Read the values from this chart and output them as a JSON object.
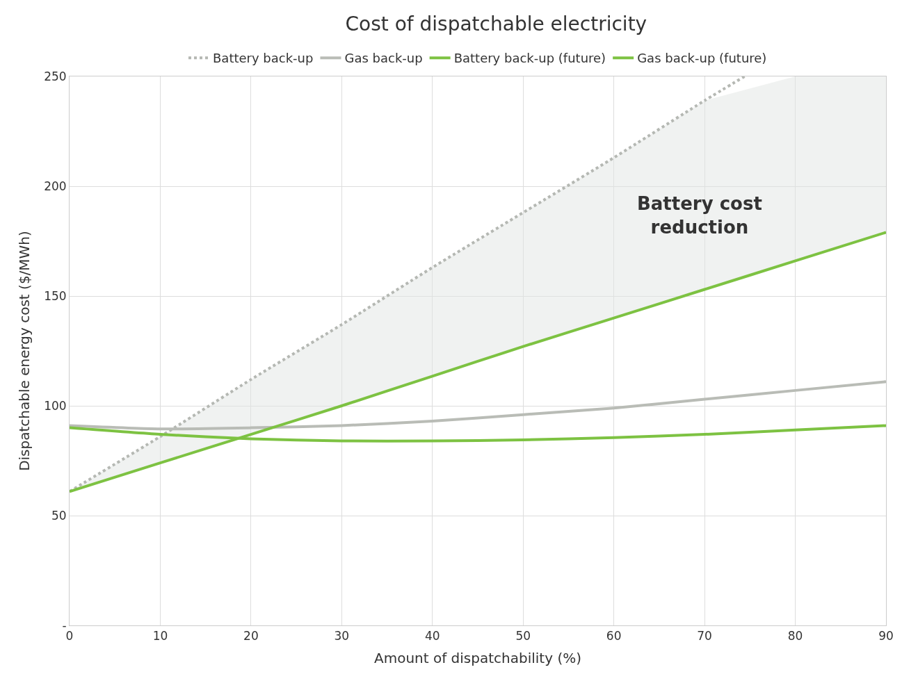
{
  "chart_data": {
    "type": "line",
    "title": "Cost of dispatchable electricity",
    "xlabel": "Amount of dispatchability (%)",
    "ylabel": "Dispatchable energy cost ($/MWh)",
    "xlim": [
      0,
      90
    ],
    "xticks": [
      0,
      10,
      20,
      30,
      40,
      50,
      60,
      70,
      80,
      90
    ],
    "ylim": [
      0,
      250
    ],
    "yticks": [
      {
        "value": 0,
        "label": "-"
      },
      50,
      100,
      150,
      200,
      250
    ],
    "grid": true,
    "legend": "top",
    "marker": "none",
    "annotations": [
      "Battery cost\nreduction"
    ],
    "series": [
      {
        "name": "Battery back-up",
        "color": "#b5b8b3",
        "line_style": "dotted",
        "x": [
          0,
          10,
          20,
          30,
          40,
          50,
          60,
          70,
          74.4
        ],
        "values": [
          61,
          86,
          112,
          137,
          163,
          188,
          213,
          239,
          250
        ]
      },
      {
        "name": "Gas back-up",
        "color": "#b9bcb6",
        "line_style": "solid",
        "x": [
          0,
          10,
          20,
          30,
          40,
          50,
          60,
          70,
          80,
          90
        ],
        "values": [
          91,
          89.5,
          90,
          91,
          93,
          96,
          99,
          103,
          107,
          111
        ]
      },
      {
        "name": "Battery back-up (future)",
        "color": "#7dc242",
        "line_style": "solid",
        "x": [
          0,
          10,
          20,
          30,
          40,
          50,
          60,
          70,
          80,
          90
        ],
        "values": [
          61,
          74,
          87,
          100,
          113.5,
          127,
          140,
          153,
          166,
          179
        ],
        "lower": [
          61,
          74,
          87,
          100,
          113.5,
          127,
          140,
          153,
          166,
          179
        ],
        "upper": [
          61,
          86,
          112,
          137,
          163,
          188,
          213,
          239,
          250,
          250
        ]
      },
      {
        "name": "Gas back-up (future)",
        "color": "#7dc242",
        "line_style": "solid",
        "x": [
          0,
          10,
          20,
          30,
          40,
          50,
          60,
          70,
          80,
          90
        ],
        "values": [
          90,
          87,
          85,
          84,
          84,
          84.5,
          85.5,
          87,
          89,
          91
        ]
      }
    ]
  }
}
